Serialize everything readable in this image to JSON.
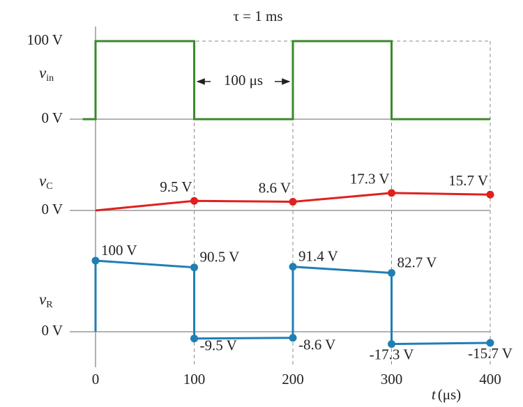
{
  "chart_data": [
    {
      "type": "line",
      "title": "τ = 1 ms",
      "ylabel": {
        "symbol": "ν",
        "sub": "in"
      },
      "annotation": "100 μs",
      "x": [
        -13,
        0,
        0,
        100,
        100,
        200,
        200,
        300,
        300,
        400
      ],
      "series": [
        {
          "color": "#3a8a2a",
          "values": [
            0,
            0,
            100,
            100,
            0,
            0,
            100,
            100,
            0,
            0
          ]
        }
      ],
      "ylim": [
        0,
        100
      ],
      "yticks": [
        {
          "value": 0,
          "label": "0 V"
        },
        {
          "value": 100,
          "label": "100 V"
        }
      ]
    },
    {
      "type": "line",
      "ylabel": {
        "symbol": "ν",
        "sub": "C"
      },
      "x": [
        0,
        100,
        200,
        300,
        400
      ],
      "series": [
        {
          "color": "#e0201e",
          "values": [
            0,
            9.5,
            8.6,
            17.3,
            15.7
          ],
          "value_labels": [
            null,
            "9.5 V",
            "8.6 V",
            "17.3 V",
            "15.7 V"
          ]
        }
      ],
      "ylim": [
        -20,
        40
      ],
      "yticks": [
        {
          "value": 0,
          "label": "0 V"
        }
      ]
    },
    {
      "type": "line",
      "ylabel": {
        "symbol": "ν",
        "sub": "R"
      },
      "x": [
        0,
        0,
        100,
        100,
        200,
        200,
        300,
        300,
        400
      ],
      "series": [
        {
          "color": "#1f7fb4",
          "values": [
            0,
            100,
            90.5,
            -9.5,
            -8.6,
            91.4,
            82.7,
            -17.3,
            -15.7
          ],
          "value_labels": [
            null,
            "100 V",
            "90.5 V",
            "-9.5 V",
            "-8.6 V",
            "91.4 V",
            "82.7 V",
            "-17.3 V",
            "-15.7 V"
          ]
        }
      ],
      "ylim": [
        -40,
        110
      ],
      "yticks": [
        {
          "value": 0,
          "label": "0 V"
        }
      ],
      "xlim": [
        0,
        400
      ],
      "xticks": [
        0,
        100,
        200,
        300,
        400
      ],
      "xlabel": {
        "symbol": "t",
        "unit": "(μs)"
      }
    }
  ]
}
